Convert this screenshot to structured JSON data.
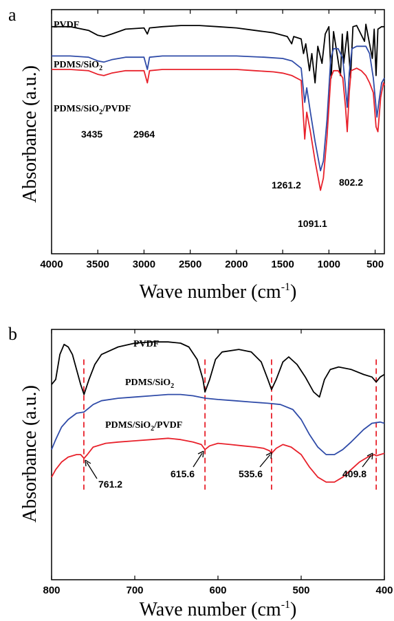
{
  "chart_data": [
    {
      "panel": "a",
      "type": "line",
      "xlabel_main": "Wave number (cm",
      "xlabel_sup": "-1",
      "xlabel_end": ")",
      "ylabel": "Absorbance (a.u.)",
      "xlim": [
        4000,
        400
      ],
      "x_ticks": [
        4000,
        3500,
        3000,
        2500,
        2000,
        1500,
        1000,
        500
      ],
      "series": [
        {
          "name_parts": [
            "PVDF"
          ],
          "color": "#000000",
          "points": [
            [
              4000,
              0.93
            ],
            [
              3800,
              0.93
            ],
            [
              3600,
              0.915
            ],
            [
              3500,
              0.895
            ],
            [
              3435,
              0.89
            ],
            [
              3350,
              0.9
            ],
            [
              3200,
              0.92
            ],
            [
              3000,
              0.925
            ],
            [
              2964,
              0.9
            ],
            [
              2940,
              0.925
            ],
            [
              2800,
              0.93
            ],
            [
              2600,
              0.935
            ],
            [
              2400,
              0.935
            ],
            [
              2200,
              0.93
            ],
            [
              2000,
              0.925
            ],
            [
              1800,
              0.915
            ],
            [
              1600,
              0.905
            ],
            [
              1450,
              0.89
            ],
            [
              1403,
              0.86
            ],
            [
              1380,
              0.89
            ],
            [
              1300,
              0.88
            ],
            [
              1275,
              0.82
            ],
            [
              1250,
              0.86
            ],
            [
              1210,
              0.75
            ],
            [
              1185,
              0.82
            ],
            [
              1150,
              0.7
            ],
            [
              1120,
              0.85
            ],
            [
              1075,
              0.78
            ],
            [
              1040,
              0.9
            ],
            [
              1000,
              0.93
            ],
            [
              976,
              0.72
            ],
            [
              950,
              0.91
            ],
            [
              875,
              0.73
            ],
            [
              855,
              0.9
            ],
            [
              840,
              0.78
            ],
            [
              800,
              0.91
            ],
            [
              766,
              0.72
            ],
            [
              740,
              0.93
            ],
            [
              700,
              0.935
            ],
            [
              615,
              0.87
            ],
            [
              600,
              0.94
            ],
            [
              530,
              0.8
            ],
            [
              510,
              0.92
            ],
            [
              490,
              0.73
            ],
            [
              470,
              0.92
            ],
            [
              430,
              0.93
            ],
            [
              400,
              0.93
            ]
          ]
        },
        {
          "name_parts": [
            "PDMS/SiO",
            "2",
            ""
          ],
          "color": "#2f4ba8",
          "points": [
            [
              4000,
              0.81
            ],
            [
              3800,
              0.81
            ],
            [
              3600,
              0.805
            ],
            [
              3500,
              0.79
            ],
            [
              3435,
              0.785
            ],
            [
              3350,
              0.795
            ],
            [
              3200,
              0.805
            ],
            [
              3000,
              0.805
            ],
            [
              2964,
              0.755
            ],
            [
              2940,
              0.805
            ],
            [
              2800,
              0.81
            ],
            [
              2500,
              0.81
            ],
            [
              2000,
              0.81
            ],
            [
              1700,
              0.805
            ],
            [
              1500,
              0.8
            ],
            [
              1400,
              0.79
            ],
            [
              1300,
              0.76
            ],
            [
              1261,
              0.62
            ],
            [
              1240,
              0.68
            ],
            [
              1200,
              0.58
            ],
            [
              1150,
              0.46
            ],
            [
              1091,
              0.34
            ],
            [
              1060,
              0.38
            ],
            [
              1020,
              0.55
            ],
            [
              980,
              0.8
            ],
            [
              950,
              0.84
            ],
            [
              900,
              0.84
            ],
            [
              850,
              0.8
            ],
            [
              820,
              0.68
            ],
            [
              802,
              0.6
            ],
            [
              780,
              0.74
            ],
            [
              750,
              0.84
            ],
            [
              700,
              0.85
            ],
            [
              650,
              0.85
            ],
            [
              600,
              0.85
            ],
            [
              560,
              0.82
            ],
            [
              520,
              0.72
            ],
            [
              480,
              0.56
            ],
            [
              460,
              0.62
            ],
            [
              430,
              0.7
            ],
            [
              400,
              0.72
            ]
          ]
        },
        {
          "name_parts": [
            "PDMS/SiO",
            "2",
            "/PVDF"
          ],
          "color": "#e8202a",
          "points": [
            [
              4000,
              0.755
            ],
            [
              3800,
              0.755
            ],
            [
              3600,
              0.75
            ],
            [
              3500,
              0.735
            ],
            [
              3435,
              0.73
            ],
            [
              3350,
              0.74
            ],
            [
              3200,
              0.75
            ],
            [
              3000,
              0.75
            ],
            [
              2964,
              0.7
            ],
            [
              2940,
              0.75
            ],
            [
              2800,
              0.755
            ],
            [
              2500,
              0.755
            ],
            [
              2000,
              0.755
            ],
            [
              1800,
              0.75
            ],
            [
              1600,
              0.745
            ],
            [
              1500,
              0.74
            ],
            [
              1400,
              0.73
            ],
            [
              1300,
              0.71
            ],
            [
              1261,
              0.47
            ],
            [
              1240,
              0.58
            ],
            [
              1200,
              0.5
            ],
            [
              1150,
              0.38
            ],
            [
              1091,
              0.26
            ],
            [
              1060,
              0.31
            ],
            [
              1020,
              0.48
            ],
            [
              980,
              0.72
            ],
            [
              950,
              0.75
            ],
            [
              900,
              0.75
            ],
            [
              850,
              0.72
            ],
            [
              820,
              0.6
            ],
            [
              802,
              0.5
            ],
            [
              780,
              0.66
            ],
            [
              760,
              0.75
            ],
            [
              700,
              0.76
            ],
            [
              650,
              0.75
            ],
            [
              600,
              0.73
            ],
            [
              560,
              0.7
            ],
            [
              520,
              0.66
            ],
            [
              490,
              0.52
            ],
            [
              470,
              0.5
            ],
            [
              440,
              0.64
            ],
            [
              410,
              0.7
            ],
            [
              400,
              0.69
            ]
          ]
        }
      ],
      "annotations": [
        "3435",
        "2964",
        "1261.2",
        "1091.1",
        "802.2"
      ]
    },
    {
      "panel": "b",
      "type": "line",
      "xlabel_main": "Wave number (cm",
      "xlabel_sup": "-1",
      "xlabel_end": ")",
      "ylabel": "Absorbance (a.u.)",
      "xlim": [
        800,
        400
      ],
      "x_ticks": [
        800,
        700,
        600,
        500,
        400
      ],
      "marked_peaks": [
        761.2,
        615.6,
        535.6,
        409.8
      ],
      "series": [
        {
          "name_parts": [
            "PVDF"
          ],
          "color": "#000000",
          "points": [
            [
              800,
              0.78
            ],
            [
              795,
              0.8
            ],
            [
              790,
              0.9
            ],
            [
              785,
              0.94
            ],
            [
              780,
              0.93
            ],
            [
              775,
              0.9
            ],
            [
              770,
              0.84
            ],
            [
              765,
              0.78
            ],
            [
              761,
              0.74
            ],
            [
              755,
              0.8
            ],
            [
              748,
              0.86
            ],
            [
              740,
              0.9
            ],
            [
              720,
              0.93
            ],
            [
              700,
              0.945
            ],
            [
              680,
              0.95
            ],
            [
              660,
              0.95
            ],
            [
              645,
              0.945
            ],
            [
              635,
              0.93
            ],
            [
              625,
              0.88
            ],
            [
              618,
              0.8
            ],
            [
              615.6,
              0.75
            ],
            [
              610,
              0.8
            ],
            [
              603,
              0.88
            ],
            [
              595,
              0.91
            ],
            [
              575,
              0.92
            ],
            [
              560,
              0.91
            ],
            [
              548,
              0.87
            ],
            [
              540,
              0.8
            ],
            [
              535.6,
              0.76
            ],
            [
              530,
              0.8
            ],
            [
              522,
              0.87
            ],
            [
              515,
              0.89
            ],
            [
              505,
              0.86
            ],
            [
              495,
              0.81
            ],
            [
              485,
              0.75
            ],
            [
              478,
              0.73
            ],
            [
              472,
              0.8
            ],
            [
              465,
              0.84
            ],
            [
              455,
              0.85
            ],
            [
              440,
              0.84
            ],
            [
              425,
              0.82
            ],
            [
              415,
              0.81
            ],
            [
              409.8,
              0.79
            ],
            [
              405,
              0.81
            ],
            [
              400,
              0.82
            ]
          ]
        },
        {
          "name_parts": [
            "PDMS/SiO",
            "2",
            ""
          ],
          "color": "#2f4ba8",
          "points": [
            [
              800,
              0.52
            ],
            [
              795,
              0.56
            ],
            [
              788,
              0.61
            ],
            [
              780,
              0.64
            ],
            [
              770,
              0.665
            ],
            [
              761,
              0.67
            ],
            [
              750,
              0.7
            ],
            [
              740,
              0.715
            ],
            [
              720,
              0.725
            ],
            [
              700,
              0.73
            ],
            [
              680,
              0.735
            ],
            [
              660,
              0.74
            ],
            [
              645,
              0.74
            ],
            [
              630,
              0.735
            ],
            [
              615,
              0.725
            ],
            [
              600,
              0.72
            ],
            [
              580,
              0.715
            ],
            [
              560,
              0.71
            ],
            [
              540,
              0.705
            ],
            [
              525,
              0.7
            ],
            [
              510,
              0.68
            ],
            [
              500,
              0.64
            ],
            [
              490,
              0.58
            ],
            [
              480,
              0.53
            ],
            [
              470,
              0.5
            ],
            [
              460,
              0.5
            ],
            [
              450,
              0.52
            ],
            [
              440,
              0.55
            ],
            [
              425,
              0.6
            ],
            [
              415,
              0.625
            ],
            [
              405,
              0.63
            ],
            [
              400,
              0.625
            ]
          ]
        },
        {
          "name_parts": [
            "PDMS/SiO",
            "2",
            "/PVDF"
          ],
          "color": "#e8202a",
          "points": [
            [
              800,
              0.41
            ],
            [
              795,
              0.44
            ],
            [
              788,
              0.47
            ],
            [
              780,
              0.49
            ],
            [
              770,
              0.5
            ],
            [
              765,
              0.5
            ],
            [
              761,
              0.485
            ],
            [
              757,
              0.5
            ],
            [
              750,
              0.53
            ],
            [
              735,
              0.545
            ],
            [
              720,
              0.55
            ],
            [
              700,
              0.555
            ],
            [
              680,
              0.56
            ],
            [
              660,
              0.565
            ],
            [
              645,
              0.56
            ],
            [
              630,
              0.55
            ],
            [
              620,
              0.54
            ],
            [
              615.6,
              0.52
            ],
            [
              610,
              0.535
            ],
            [
              600,
              0.545
            ],
            [
              585,
              0.54
            ],
            [
              570,
              0.535
            ],
            [
              555,
              0.53
            ],
            [
              545,
              0.525
            ],
            [
              538,
              0.515
            ],
            [
              535.6,
              0.505
            ],
            [
              530,
              0.525
            ],
            [
              522,
              0.54
            ],
            [
              512,
              0.53
            ],
            [
              500,
              0.5
            ],
            [
              490,
              0.45
            ],
            [
              480,
              0.41
            ],
            [
              470,
              0.39
            ],
            [
              460,
              0.39
            ],
            [
              450,
              0.41
            ],
            [
              440,
              0.44
            ],
            [
              430,
              0.47
            ],
            [
              420,
              0.49
            ],
            [
              412,
              0.5
            ],
            [
              409.8,
              0.495
            ],
            [
              405,
              0.5
            ],
            [
              400,
              0.505
            ]
          ]
        }
      ],
      "annotations": [
        "761.2",
        "615.6",
        "535.6",
        "409.8"
      ]
    }
  ]
}
